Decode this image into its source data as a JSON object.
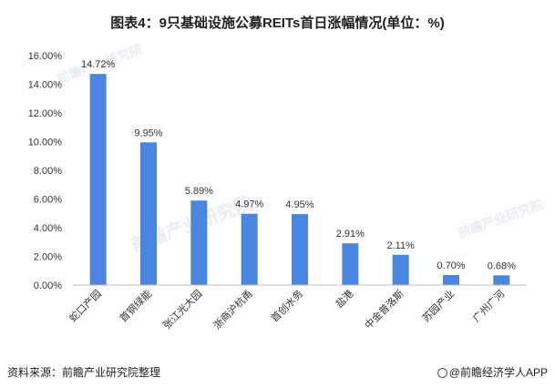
{
  "title": "图表4：9只基础设施公募REITs首日涨幅情况(单位：%)",
  "footer": {
    "source": "资料来源：前瞻产业研究院整理",
    "brand": "@前瞻经济学人APP"
  },
  "watermark": "前瞻产业研究院",
  "colors": {
    "bar": "#4a86e0",
    "axis": "#bfbfbf",
    "text": "#333333"
  },
  "chart_data": {
    "type": "bar",
    "categories": [
      "蛇口产园",
      "首钢绿能",
      "张江光大园",
      "浙商沪杭甬",
      "首创水务",
      "盐港",
      "中金普洛斯",
      "苏园产业",
      "广州广河"
    ],
    "values": [
      14.72,
      9.95,
      5.89,
      4.97,
      4.95,
      2.91,
      2.11,
      0.7,
      0.68
    ],
    "data_labels": [
      "14.72%",
      "9.95%",
      "5.89%",
      "4.97%",
      "4.95%",
      "2.91%",
      "2.11%",
      "0.70%",
      "0.68%"
    ],
    "yticks": [
      "0.00%",
      "2.00%",
      "4.00%",
      "6.00%",
      "8.00%",
      "10.00%",
      "12.00%",
      "14.00%",
      "16.00%"
    ],
    "ylim": [
      0,
      16
    ],
    "grid": false,
    "legend": "none"
  }
}
